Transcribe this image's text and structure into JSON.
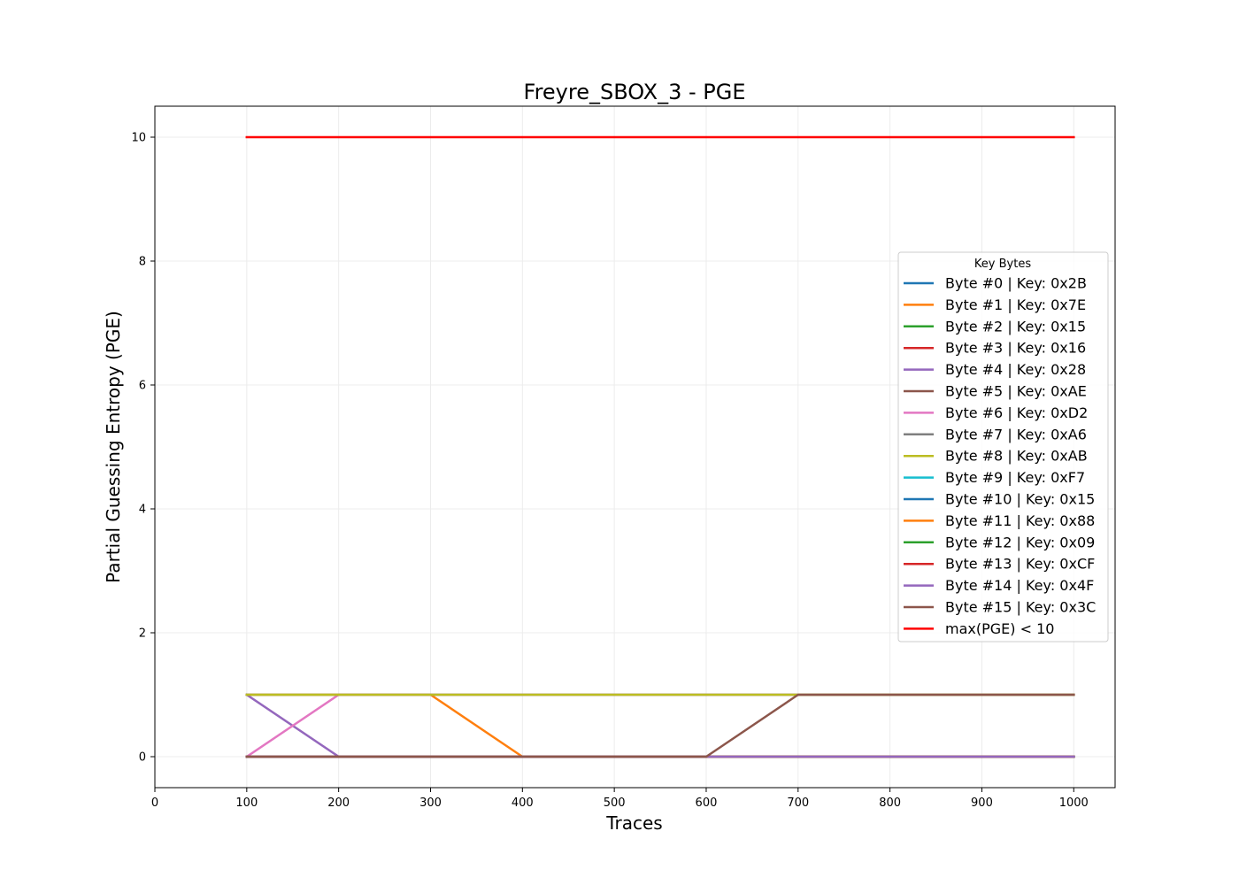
{
  "chart_data": {
    "type": "line",
    "title": "Freyre_SBOX_3 - PGE",
    "xlabel": "Traces",
    "ylabel": "Partial Guessing Entropy (PGE)",
    "xlim": [
      0,
      1045
    ],
    "ylim": [
      -0.5,
      10.5
    ],
    "xticks": [
      0,
      100,
      200,
      300,
      400,
      500,
      600,
      700,
      800,
      900,
      1000
    ],
    "yticks": [
      0,
      2,
      4,
      6,
      8,
      10
    ],
    "grid": true,
    "legend": {
      "title": "Key Bytes",
      "placement": "center-right"
    },
    "x": [
      100,
      200,
      300,
      400,
      500,
      600,
      700,
      800,
      900,
      1000
    ],
    "series": [
      {
        "name": "Byte #0 | Key: 0x2B",
        "color": "#1f77b4",
        "values": [
          0,
          0,
          0,
          0,
          0,
          0,
          0,
          0,
          0,
          0
        ]
      },
      {
        "name": "Byte #1 | Key: 0x7E",
        "color": "#ff7f0e",
        "values": [
          1,
          1,
          1,
          0,
          0,
          0,
          0,
          0,
          0,
          0
        ]
      },
      {
        "name": "Byte #2 | Key: 0x15",
        "color": "#2ca02c",
        "values": [
          0,
          0,
          0,
          0,
          0,
          0,
          0,
          0,
          0,
          0
        ]
      },
      {
        "name": "Byte #3 | Key: 0x16",
        "color": "#d62728",
        "values": [
          0,
          0,
          0,
          0,
          0,
          0,
          0,
          0,
          0,
          0
        ]
      },
      {
        "name": "Byte #4 | Key: 0x28",
        "color": "#9467bd",
        "values": [
          1,
          0,
          0,
          0,
          0,
          0,
          0,
          0,
          0,
          0
        ]
      },
      {
        "name": "Byte #5 | Key: 0xAE",
        "color": "#8c564b",
        "values": [
          0,
          0,
          0,
          0,
          0,
          0,
          0,
          0,
          0,
          0
        ]
      },
      {
        "name": "Byte #6 | Key: 0xD2",
        "color": "#e377c2",
        "values": [
          0,
          1,
          1,
          1,
          1,
          1,
          1,
          1,
          1,
          1
        ]
      },
      {
        "name": "Byte #7 | Key: 0xA6",
        "color": "#7f7f7f",
        "values": [
          1,
          1,
          1,
          1,
          1,
          1,
          1,
          1,
          1,
          1
        ]
      },
      {
        "name": "Byte #8 | Key: 0xAB",
        "color": "#bcbd22",
        "values": [
          1,
          1,
          1,
          1,
          1,
          1,
          1,
          1,
          1,
          1
        ]
      },
      {
        "name": "Byte #9 | Key: 0xF7",
        "color": "#17becf",
        "values": [
          0,
          0,
          0,
          0,
          0,
          0,
          0,
          0,
          0,
          0
        ]
      },
      {
        "name": "Byte #10 | Key: 0x15",
        "color": "#1f77b4",
        "values": [
          0,
          0,
          0,
          0,
          0,
          0,
          0,
          0,
          0,
          0
        ]
      },
      {
        "name": "Byte #11 | Key: 0x88",
        "color": "#ff7f0e",
        "values": [
          0,
          0,
          0,
          0,
          0,
          0,
          0,
          0,
          0,
          0
        ]
      },
      {
        "name": "Byte #12 | Key: 0x09",
        "color": "#2ca02c",
        "values": [
          0,
          0,
          0,
          0,
          0,
          0,
          0,
          0,
          0,
          0
        ]
      },
      {
        "name": "Byte #13 | Key: 0xCF",
        "color": "#d62728",
        "values": [
          0,
          0,
          0,
          0,
          0,
          0,
          0,
          0,
          0,
          0
        ]
      },
      {
        "name": "Byte #14 | Key: 0x4F",
        "color": "#9467bd",
        "values": [
          0,
          0,
          0,
          0,
          0,
          0,
          0,
          0,
          0,
          0
        ]
      },
      {
        "name": "Byte #15 | Key: 0x3C",
        "color": "#8c564b",
        "values": [
          0,
          0,
          0,
          0,
          0,
          0,
          1,
          1,
          1,
          1
        ]
      },
      {
        "name": "max(PGE) < 10",
        "color": "#ff0000",
        "values": [
          10,
          10,
          10,
          10,
          10,
          10,
          10,
          10,
          10,
          10
        ]
      }
    ]
  }
}
